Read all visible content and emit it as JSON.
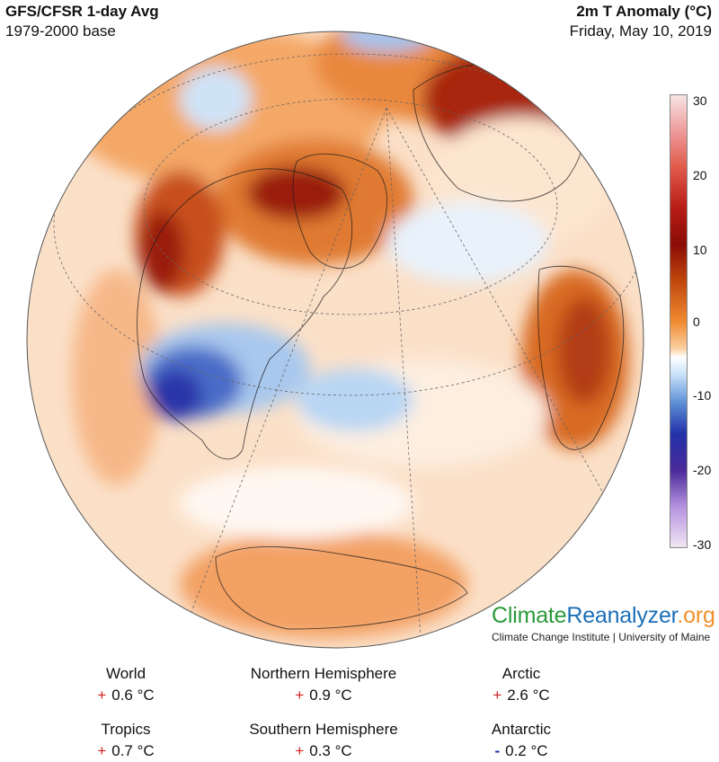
{
  "header": {
    "model_title": "GFS/CFSR 1-day Avg",
    "base_period": "1979-2000 base",
    "variable": "2m T Anomaly (°C)",
    "date": "Friday, May 10, 2019"
  },
  "colorbar": {
    "ticks": [
      "30",
      "20",
      "10",
      "0",
      "-10",
      "-20",
      "-30"
    ],
    "colors": {
      "hot": "#8a0c06",
      "warm": "#ef8a30",
      "neutral": "#ffffff",
      "cool": "#5d8fd6",
      "cold": "#2330a8"
    }
  },
  "branding": {
    "logo_part1": "Climate",
    "logo_part2": "Reanalyzer",
    "logo_part3": ".org",
    "credit": "Climate Change Institute | University of Maine"
  },
  "stats": [
    {
      "region": "World",
      "sign": "+",
      "value": "0.6 °C"
    },
    {
      "region": "Northern Hemisphere",
      "sign": "+",
      "value": "0.9 °C"
    },
    {
      "region": "Arctic",
      "sign": "+",
      "value": "2.6 °C"
    },
    {
      "region": "Tropics",
      "sign": "+",
      "value": "0.7 °C"
    },
    {
      "region": "Southern Hemisphere",
      "sign": "+",
      "value": "0.3 °C"
    },
    {
      "region": "Antarctic",
      "sign": "-",
      "value": "0.2 °C"
    }
  ]
}
